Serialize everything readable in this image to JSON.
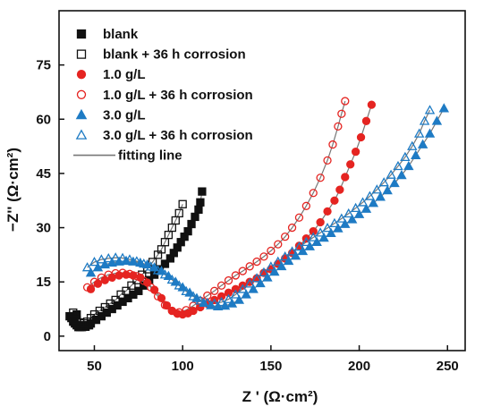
{
  "chart_data": {
    "type": "scatter",
    "xlabel": "Z ' (Ω·cm²)",
    "ylabel": "−Z'' (Ω·cm²)",
    "xlim": [
      30,
      260
    ],
    "ylim": [
      -4,
      90
    ],
    "xticks": [
      50,
      100,
      150,
      200,
      250
    ],
    "yticks": [
      0,
      15,
      30,
      45,
      60,
      75
    ],
    "legend_position": "top-left",
    "colors": {
      "black": "#111111",
      "red": "#e52421",
      "blue": "#1e7bc4",
      "fit_line": "#777777"
    },
    "series": [
      {
        "name": "blank",
        "marker": "square",
        "filled": true,
        "color": "#111111",
        "points": [
          [
            36,
            5.5
          ],
          [
            37,
            5
          ],
          [
            38,
            4
          ],
          [
            39,
            3.5
          ],
          [
            40,
            3
          ],
          [
            40,
            6
          ],
          [
            41,
            2.5
          ],
          [
            42,
            2.5
          ],
          [
            43,
            2.5
          ],
          [
            44,
            3
          ],
          [
            45,
            2.6
          ],
          [
            47,
            3
          ],
          [
            48,
            3.5
          ],
          [
            51,
            4.5
          ],
          [
            54,
            5.5
          ],
          [
            57,
            6.5
          ],
          [
            60,
            7.5
          ],
          [
            63,
            8.5
          ],
          [
            66,
            9.5
          ],
          [
            69,
            10.5
          ],
          [
            72,
            11.5
          ],
          [
            75,
            12.5
          ],
          [
            78,
            14
          ],
          [
            81,
            15.5
          ],
          [
            84,
            17
          ],
          [
            87,
            18.5
          ],
          [
            90,
            20
          ],
          [
            93,
            21.5
          ],
          [
            95,
            23
          ],
          [
            97,
            24.5
          ],
          [
            99,
            26
          ],
          [
            101,
            27.5
          ],
          [
            103,
            29
          ],
          [
            105,
            31
          ],
          [
            107,
            33
          ],
          [
            109,
            35
          ],
          [
            110,
            37
          ],
          [
            111,
            40
          ]
        ]
      },
      {
        "name": "blank + 36 h corrosion",
        "marker": "square",
        "filled": false,
        "color": "#111111",
        "points": [
          [
            38,
            6.5
          ],
          [
            40,
            4.5
          ],
          [
            42,
            3.8
          ],
          [
            44,
            3.5
          ],
          [
            46,
            4
          ],
          [
            48,
            5
          ],
          [
            50,
            6
          ],
          [
            53,
            7
          ],
          [
            56,
            8
          ],
          [
            59,
            9
          ],
          [
            62,
            10
          ],
          [
            65,
            11.5
          ],
          [
            68,
            12.5
          ],
          [
            71,
            14
          ],
          [
            74,
            15.5
          ],
          [
            77,
            17
          ],
          [
            80,
            18.5
          ],
          [
            83,
            20.5
          ],
          [
            86,
            22.5
          ],
          [
            88,
            24
          ],
          [
            90,
            26
          ],
          [
            92,
            28
          ],
          [
            94,
            30
          ],
          [
            96,
            32
          ],
          [
            98,
            34
          ],
          [
            100,
            36.5
          ]
        ]
      },
      {
        "name": "1.0 g/L",
        "marker": "circle",
        "filled": true,
        "color": "#e52421",
        "points": [
          [
            48,
            13
          ],
          [
            52,
            14.5
          ],
          [
            56,
            15.5
          ],
          [
            60,
            16.2
          ],
          [
            64,
            16.8
          ],
          [
            68,
            17
          ],
          [
            72,
            16.8
          ],
          [
            76,
            16.2
          ],
          [
            80,
            14.8
          ],
          [
            84,
            12.8
          ],
          [
            88,
            10.5
          ],
          [
            91,
            8.5
          ],
          [
            94,
            7
          ],
          [
            97,
            6.2
          ],
          [
            100,
            6
          ],
          [
            103,
            6.3
          ],
          [
            106,
            7
          ],
          [
            110,
            8
          ],
          [
            114,
            9
          ],
          [
            118,
            10
          ],
          [
            122,
            11
          ],
          [
            126,
            12
          ],
          [
            130,
            13
          ],
          [
            134,
            14
          ],
          [
            138,
            15
          ],
          [
            142,
            16
          ],
          [
            146,
            17.5
          ],
          [
            150,
            18.5
          ],
          [
            154,
            20
          ],
          [
            158,
            21.5
          ],
          [
            162,
            23
          ],
          [
            166,
            25
          ],
          [
            170,
            27
          ],
          [
            174,
            29
          ],
          [
            178,
            31.5
          ],
          [
            182,
            34.5
          ],
          [
            186,
            37.5
          ],
          [
            189,
            40.5
          ],
          [
            192,
            44
          ],
          [
            195,
            47.5
          ],
          [
            198,
            51
          ],
          [
            201,
            55
          ],
          [
            204,
            59.5
          ],
          [
            207,
            64
          ]
        ]
      },
      {
        "name": "1.0 g/L + 36 h corrosion",
        "marker": "circle",
        "filled": false,
        "color": "#e52421",
        "points": [
          [
            46,
            13.5
          ],
          [
            50,
            15
          ],
          [
            54,
            16.2
          ],
          [
            58,
            17
          ],
          [
            62,
            17.4
          ],
          [
            66,
            17.5
          ],
          [
            70,
            17.2
          ],
          [
            74,
            16.6
          ],
          [
            78,
            15.3
          ],
          [
            82,
            13.5
          ],
          [
            86,
            11
          ],
          [
            90,
            8.6
          ],
          [
            94,
            7
          ],
          [
            98,
            6.6
          ],
          [
            102,
            7.2
          ],
          [
            106,
            8.4
          ],
          [
            110,
            9.8
          ],
          [
            114,
            11.2
          ],
          [
            118,
            12.5
          ],
          [
            122,
            14
          ],
          [
            126,
            15.4
          ],
          [
            130,
            16.8
          ],
          [
            134,
            18
          ],
          [
            138,
            19.3
          ],
          [
            142,
            20.6
          ],
          [
            146,
            22
          ],
          [
            150,
            23.6
          ],
          [
            154,
            25.4
          ],
          [
            158,
            27.5
          ],
          [
            162,
            30
          ],
          [
            166,
            32.8
          ],
          [
            170,
            36
          ],
          [
            174,
            39.6
          ],
          [
            178,
            43.8
          ],
          [
            182,
            48.6
          ],
          [
            185,
            53
          ],
          [
            188,
            58
          ],
          [
            190,
            61.5
          ],
          [
            192,
            65
          ]
        ]
      },
      {
        "name": "3.0 g/L",
        "marker": "triangle",
        "filled": true,
        "color": "#1e7bc4",
        "points": [
          [
            48,
            17.5
          ],
          [
            52,
            19
          ],
          [
            56,
            19.8
          ],
          [
            60,
            20.3
          ],
          [
            64,
            20.6
          ],
          [
            68,
            20.8
          ],
          [
            72,
            20.6
          ],
          [
            76,
            20.3
          ],
          [
            80,
            19.8
          ],
          [
            84,
            19
          ],
          [
            88,
            18
          ],
          [
            92,
            16.6
          ],
          [
            96,
            15
          ],
          [
            100,
            13.5
          ],
          [
            104,
            12
          ],
          [
            108,
            10.5
          ],
          [
            112,
            9.2
          ],
          [
            116,
            8.5
          ],
          [
            120,
            8.2
          ],
          [
            124,
            8.4
          ],
          [
            128,
            9
          ],
          [
            132,
            10
          ],
          [
            136,
            11.5
          ],
          [
            140,
            13
          ],
          [
            144,
            14.6
          ],
          [
            148,
            16.2
          ],
          [
            152,
            17.8
          ],
          [
            156,
            19.3
          ],
          [
            160,
            20.8
          ],
          [
            164,
            22.2
          ],
          [
            168,
            23.5
          ],
          [
            172,
            24.8
          ],
          [
            176,
            26
          ],
          [
            180,
            27.2
          ],
          [
            184,
            28.5
          ],
          [
            188,
            29.8
          ],
          [
            192,
            31
          ],
          [
            196,
            32.3
          ],
          [
            200,
            33.7
          ],
          [
            204,
            35.2
          ],
          [
            208,
            36.8
          ],
          [
            212,
            38.5
          ],
          [
            216,
            40.3
          ],
          [
            220,
            42.3
          ],
          [
            224,
            44.5
          ],
          [
            228,
            47
          ],
          [
            232,
            50
          ],
          [
            236,
            53
          ],
          [
            240,
            56
          ],
          [
            244,
            59.5
          ],
          [
            248,
            63
          ]
        ]
      },
      {
        "name": "3.0 g/L + 36 h corrosion",
        "marker": "triangle",
        "filled": false,
        "color": "#1e7bc4",
        "points": [
          [
            46,
            19
          ],
          [
            50,
            20.5
          ],
          [
            54,
            21.2
          ],
          [
            58,
            21.5
          ],
          [
            62,
            21.7
          ],
          [
            66,
            21.6
          ],
          [
            70,
            21.2
          ],
          [
            74,
            20.7
          ],
          [
            78,
            20
          ],
          [
            82,
            19.2
          ],
          [
            86,
            18.2
          ],
          [
            90,
            17
          ],
          [
            94,
            15.6
          ],
          [
            98,
            14
          ],
          [
            102,
            12.4
          ],
          [
            106,
            11
          ],
          [
            110,
            9.8
          ],
          [
            114,
            9.2
          ],
          [
            118,
            9
          ],
          [
            122,
            9.4
          ],
          [
            126,
            10.2
          ],
          [
            130,
            11.5
          ],
          [
            134,
            13
          ],
          [
            138,
            14.5
          ],
          [
            142,
            16
          ],
          [
            146,
            17.6
          ],
          [
            150,
            19.2
          ],
          [
            154,
            20.6
          ],
          [
            158,
            22
          ],
          [
            162,
            23.4
          ],
          [
            166,
            24.7
          ],
          [
            170,
            26
          ],
          [
            174,
            27.3
          ],
          [
            178,
            28.6
          ],
          [
            182,
            29.9
          ],
          [
            186,
            31.2
          ],
          [
            190,
            32.5
          ],
          [
            194,
            33.9
          ],
          [
            198,
            35.4
          ],
          [
            202,
            37
          ],
          [
            206,
            38.7
          ],
          [
            210,
            40.5
          ],
          [
            214,
            42.5
          ],
          [
            218,
            44.6
          ],
          [
            222,
            47
          ],
          [
            226,
            49.5
          ],
          [
            230,
            52.5
          ],
          [
            234,
            56
          ],
          [
            237,
            59.5
          ],
          [
            240,
            62.5
          ]
        ]
      }
    ],
    "legend": [
      {
        "label": "blank",
        "marker": "square",
        "filled": true,
        "color": "#111111"
      },
      {
        "label": "blank + 36 h corrosion",
        "marker": "square",
        "filled": false,
        "color": "#111111"
      },
      {
        "label": "1.0 g/L",
        "marker": "circle",
        "filled": true,
        "color": "#e52421"
      },
      {
        "label": "1.0 g/L + 36 h corrosion",
        "marker": "circle",
        "filled": false,
        "color": "#e52421"
      },
      {
        "label": "3.0 g/L",
        "marker": "triangle",
        "filled": true,
        "color": "#1e7bc4"
      },
      {
        "label": "3.0 g/L + 36 h corrosion",
        "marker": "triangle",
        "filled": false,
        "color": "#1e7bc4"
      },
      {
        "label": "fitting line",
        "marker": "line",
        "filled": false,
        "color": "#777777"
      }
    ]
  }
}
